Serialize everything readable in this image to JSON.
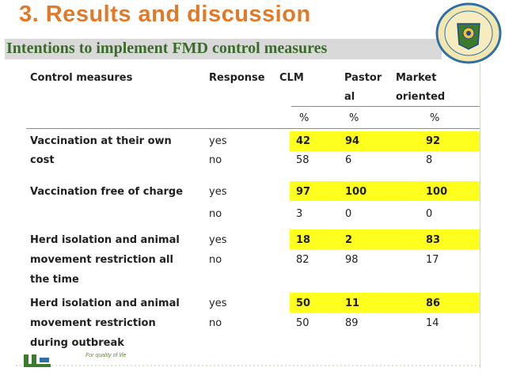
{
  "title": "3. Results and discussion",
  "subtitle": "Intentions to implement FMD control measures",
  "table": {
    "headers": {
      "measure": "Control measures",
      "response": "Response",
      "clm": "CLM",
      "pastoral_line1": "Pastor",
      "pastoral_line2": "al",
      "market_line1": "Market",
      "market_line2": "oriented",
      "unit_clm": "%",
      "unit_pastoral": "%",
      "unit_market": "%"
    },
    "rows": [
      {
        "measure_lines": [
          "Vaccination  at  their  own",
          "cost"
        ],
        "yes_label": "yes",
        "no_label": "no",
        "yes": {
          "clm": "42",
          "pastoral": "94",
          "market": "92"
        },
        "no": {
          "clm": "58",
          "pastoral": "6",
          "market": "8"
        }
      },
      {
        "measure_lines": [
          "Vaccination free of charge"
        ],
        "yes_label": "yes",
        "no_label": "no",
        "yes": {
          "clm": "97",
          "pastoral": "100",
          "market": "100"
        },
        "no": {
          "clm": "3",
          "pastoral": "0",
          "market": "0"
        }
      },
      {
        "measure_lines": [
          "Herd isolation and animal",
          "movement restriction all",
          "the  time"
        ],
        "yes_label": "yes",
        "no_label": "no",
        "yes": {
          "clm": "18",
          "pastoral": "2",
          "market": "83"
        },
        "no": {
          "clm": "82",
          "pastoral": "98",
          "market": "17"
        }
      },
      {
        "measure_lines": [
          "Herd isolation and animal",
          "movement restriction",
          "during outbreak"
        ],
        "yes_label": "yes",
        "no_label": "no",
        "yes": {
          "clm": "50",
          "pastoral": "11",
          "market": "86"
        },
        "no": {
          "clm": "50",
          "pastoral": "89",
          "market": "14"
        }
      }
    ]
  },
  "footer": {
    "tagline": "For quality of life"
  },
  "colors": {
    "title": "#e07a2b",
    "subtitle": "#3a6b2a",
    "highlight": "#ffff1e",
    "subtitle_bar": "#d9d9d9"
  },
  "icons": {
    "seal": "university-seal-icon",
    "footer_logo": "university-logo-icon"
  }
}
